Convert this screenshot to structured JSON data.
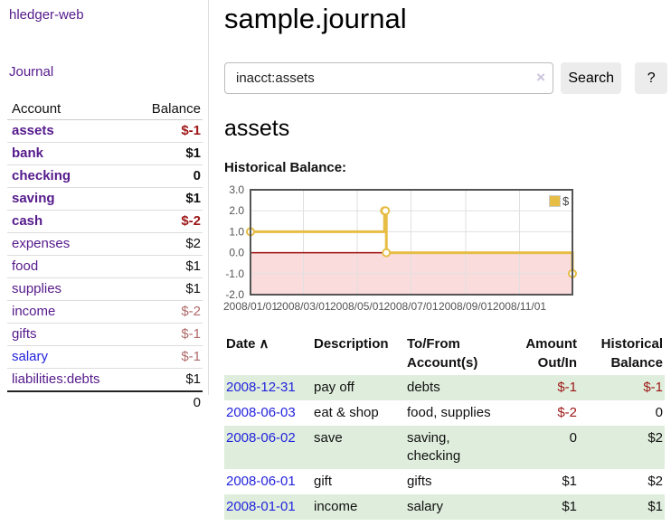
{
  "colors": {
    "brand_purple": "#551a8b",
    "link_blue": "#2323dd",
    "negative_red": "#9e1616",
    "faded_negative_red": "#b06a6a",
    "row_green": "#dfeedc",
    "chart_gold": "#e6bd45"
  },
  "sidebar": {
    "brand": "hledger-web",
    "journal_link": "Journal",
    "accounts_table": {
      "headers": {
        "account": "Account",
        "balance": "Balance"
      },
      "rows": [
        {
          "name": "assets",
          "balance": "$-1"
        },
        {
          "name": "bank",
          "balance": "$1"
        },
        {
          "name": "checking",
          "balance": "0"
        },
        {
          "name": "saving",
          "balance": "$1"
        },
        {
          "name": "cash",
          "balance": "$-2"
        },
        {
          "name": "expenses",
          "balance": "$2"
        },
        {
          "name": "food",
          "balance": "$1"
        },
        {
          "name": "supplies",
          "balance": "$1"
        },
        {
          "name": "income",
          "balance": "$-2"
        },
        {
          "name": "gifts",
          "balance": "$-1"
        },
        {
          "name": "salary",
          "balance": "$-1"
        },
        {
          "name": "liabilities:debts",
          "balance": "$1"
        }
      ],
      "total": "0"
    }
  },
  "header": {
    "title": "sample.journal"
  },
  "search": {
    "value": "inacct:assets",
    "clear_icon": "×",
    "search_button": "Search",
    "help_button": "?"
  },
  "account_page": {
    "heading": "assets",
    "chart_title": "Historical Balance:"
  },
  "chart_data": {
    "type": "line",
    "title": "Historical Balance:",
    "xlim": [
      "2008-01-01",
      "2008-12-31"
    ],
    "ylim": [
      -2,
      3
    ],
    "grid": true,
    "legend_position": "top-right",
    "series": [
      {
        "name": "$",
        "color": "#e6bd45",
        "step": true,
        "points": [
          [
            "2008-01-01",
            1
          ],
          [
            "2008-06-01",
            2
          ],
          [
            "2008-06-02",
            2
          ],
          [
            "2008-06-03",
            0
          ],
          [
            "2008-12-31",
            -1
          ]
        ]
      }
    ],
    "y_ticks": [
      {
        "v": 3,
        "label": "3.0"
      },
      {
        "v": 2,
        "label": "2.0"
      },
      {
        "v": 1,
        "label": "1.0"
      },
      {
        "v": 0,
        "label": "0.0"
      },
      {
        "v": -1,
        "label": "-1.0"
      },
      {
        "v": -2,
        "label": "-2.0"
      }
    ],
    "x_ticks": [
      {
        "date": "2008-01-01",
        "label": "2008/01/01"
      },
      {
        "date": "2008-03-01",
        "label": "2008/03/01"
      },
      {
        "date": "2008-05-01",
        "label": "2008/05/01"
      },
      {
        "date": "2008-07-01",
        "label": "2008/07/01"
      },
      {
        "date": "2008-09-01",
        "label": "2008/09/01"
      },
      {
        "date": "2008-11-01",
        "label": "2008/11/01"
      }
    ],
    "negative_fill": "#fbdcdc",
    "zero_line_color": "#9e0b0b"
  },
  "register_table": {
    "headers": {
      "date": "Date",
      "sort_indicator": "∧",
      "description": "Description",
      "accounts": "To/From Account(s)",
      "amount": "Amount Out/In",
      "balance": "Historical Balance"
    },
    "rows": [
      {
        "date": "2008-12-31",
        "description": "pay off",
        "accounts": "debts",
        "amount": "$-1",
        "balance": "$-1"
      },
      {
        "date": "2008-06-03",
        "description": "eat & shop",
        "accounts": "food, supplies",
        "amount": "$-2",
        "balance": "0"
      },
      {
        "date": "2008-06-02",
        "description": "save",
        "accounts": "saving, checking",
        "amount": "0",
        "balance": "$2"
      },
      {
        "date": "2008-06-01",
        "description": "gift",
        "accounts": "gifts",
        "amount": "$1",
        "balance": "$2"
      },
      {
        "date": "2008-01-01",
        "description": "income",
        "accounts": "salary",
        "amount": "$1",
        "balance": "$1"
      }
    ]
  }
}
